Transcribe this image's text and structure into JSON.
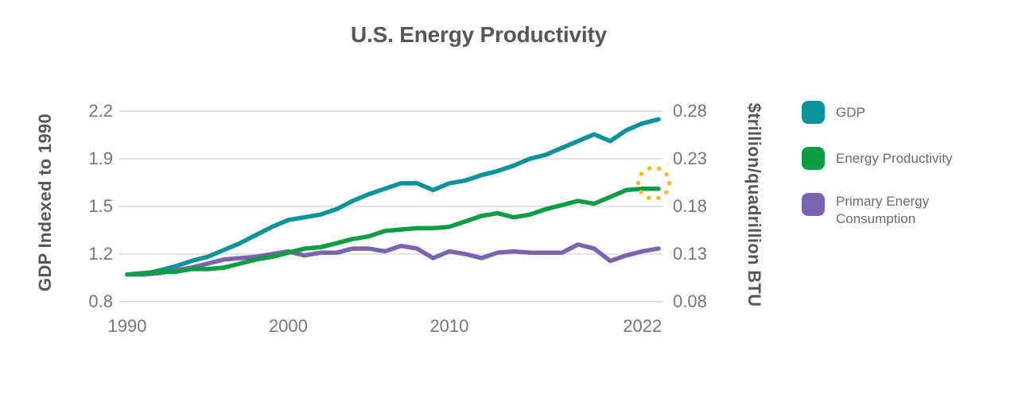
{
  "title": "U.S. Energy Productivity",
  "chart_data": {
    "type": "line",
    "title": "U.S. Energy Productivity",
    "x": [
      1990,
      1991,
      1992,
      1993,
      1994,
      1995,
      1996,
      1997,
      1998,
      1999,
      2000,
      2001,
      2002,
      2003,
      2004,
      2005,
      2006,
      2007,
      2008,
      2009,
      2010,
      2011,
      2012,
      2013,
      2014,
      2015,
      2016,
      2017,
      2018,
      2019,
      2020,
      2021,
      2022,
      2023
    ],
    "x_axis": {
      "ticks": [
        {
          "label": "1990",
          "year": 1990
        },
        {
          "label": "2000",
          "year": 2000
        },
        {
          "label": "2010",
          "year": 2010
        },
        {
          "label": "2022",
          "year": 2022
        }
      ],
      "xlim": [
        1990,
        2023
      ]
    },
    "y_axis_left": {
      "title": "GDP Indexed to 1990",
      "tick_labels": [
        "2.2",
        "1.9",
        "1.5",
        "1.2",
        "0.8"
      ],
      "ylim": [
        0.8,
        2.2
      ]
    },
    "y_axis_right": {
      "title": "$trillion/quadrillion BTU",
      "tick_labels": [
        "0.28",
        "0.23",
        "0.18",
        "0.13",
        "0.08"
      ],
      "ylim": [
        0.08,
        0.28
      ]
    },
    "grid": {
      "horizontal_only": true,
      "color": "#D9DADB"
    },
    "legend_position": "right",
    "series": [
      {
        "name": "GDP",
        "color": "#0A939B",
        "units": "index, 1990 = 1.0 (left axis)",
        "values": [
          1.0,
          1.0,
          1.03,
          1.06,
          1.1,
          1.13,
          1.18,
          1.23,
          1.29,
          1.35,
          1.4,
          1.42,
          1.44,
          1.48,
          1.54,
          1.59,
          1.63,
          1.67,
          1.67,
          1.62,
          1.67,
          1.69,
          1.73,
          1.76,
          1.8,
          1.85,
          1.88,
          1.93,
          1.98,
          2.03,
          1.98,
          2.06,
          2.11,
          2.14
        ]
      },
      {
        "name": "Energy Productivity",
        "color": "#0D9D47",
        "units": "index, 1990 = 1.0 (right axis reads 0.08-0.28 $T/quad BTU)",
        "values": [
          1.0,
          1.01,
          1.02,
          1.02,
          1.04,
          1.04,
          1.05,
          1.08,
          1.11,
          1.13,
          1.16,
          1.19,
          1.2,
          1.23,
          1.26,
          1.28,
          1.32,
          1.33,
          1.34,
          1.34,
          1.35,
          1.39,
          1.43,
          1.45,
          1.42,
          1.44,
          1.48,
          1.51,
          1.54,
          1.52,
          1.57,
          1.62,
          1.63,
          1.63
        ]
      },
      {
        "name": "Primary Energy Consumption",
        "color": "#7A64B0",
        "units": "index, 1990 = 1.0 (left axis)",
        "values": [
          1.0,
          1.0,
          1.01,
          1.03,
          1.05,
          1.08,
          1.11,
          1.12,
          1.13,
          1.15,
          1.17,
          1.14,
          1.16,
          1.16,
          1.19,
          1.19,
          1.17,
          1.21,
          1.19,
          1.12,
          1.17,
          1.15,
          1.12,
          1.16,
          1.17,
          1.16,
          1.16,
          1.16,
          1.22,
          1.19,
          1.1,
          1.14,
          1.17,
          1.19
        ]
      }
    ],
    "annotation": {
      "shape": "dotted-circle",
      "color": "#FDB71A",
      "series": "Energy Productivity",
      "year": 2023,
      "value": 1.63
    }
  },
  "legend": {
    "items": [
      {
        "label": "GDP",
        "color": "#0A939B",
        "label_lines": [
          "GDP"
        ]
      },
      {
        "label": "Energy Productivity",
        "color": "#0D9D47",
        "label_lines": [
          "Energy Productivity"
        ]
      },
      {
        "label": "Primary Energy Consumption",
        "color": "#7A64B0",
        "label_lines": [
          "Primary Energy",
          "Consumption"
        ]
      }
    ]
  }
}
